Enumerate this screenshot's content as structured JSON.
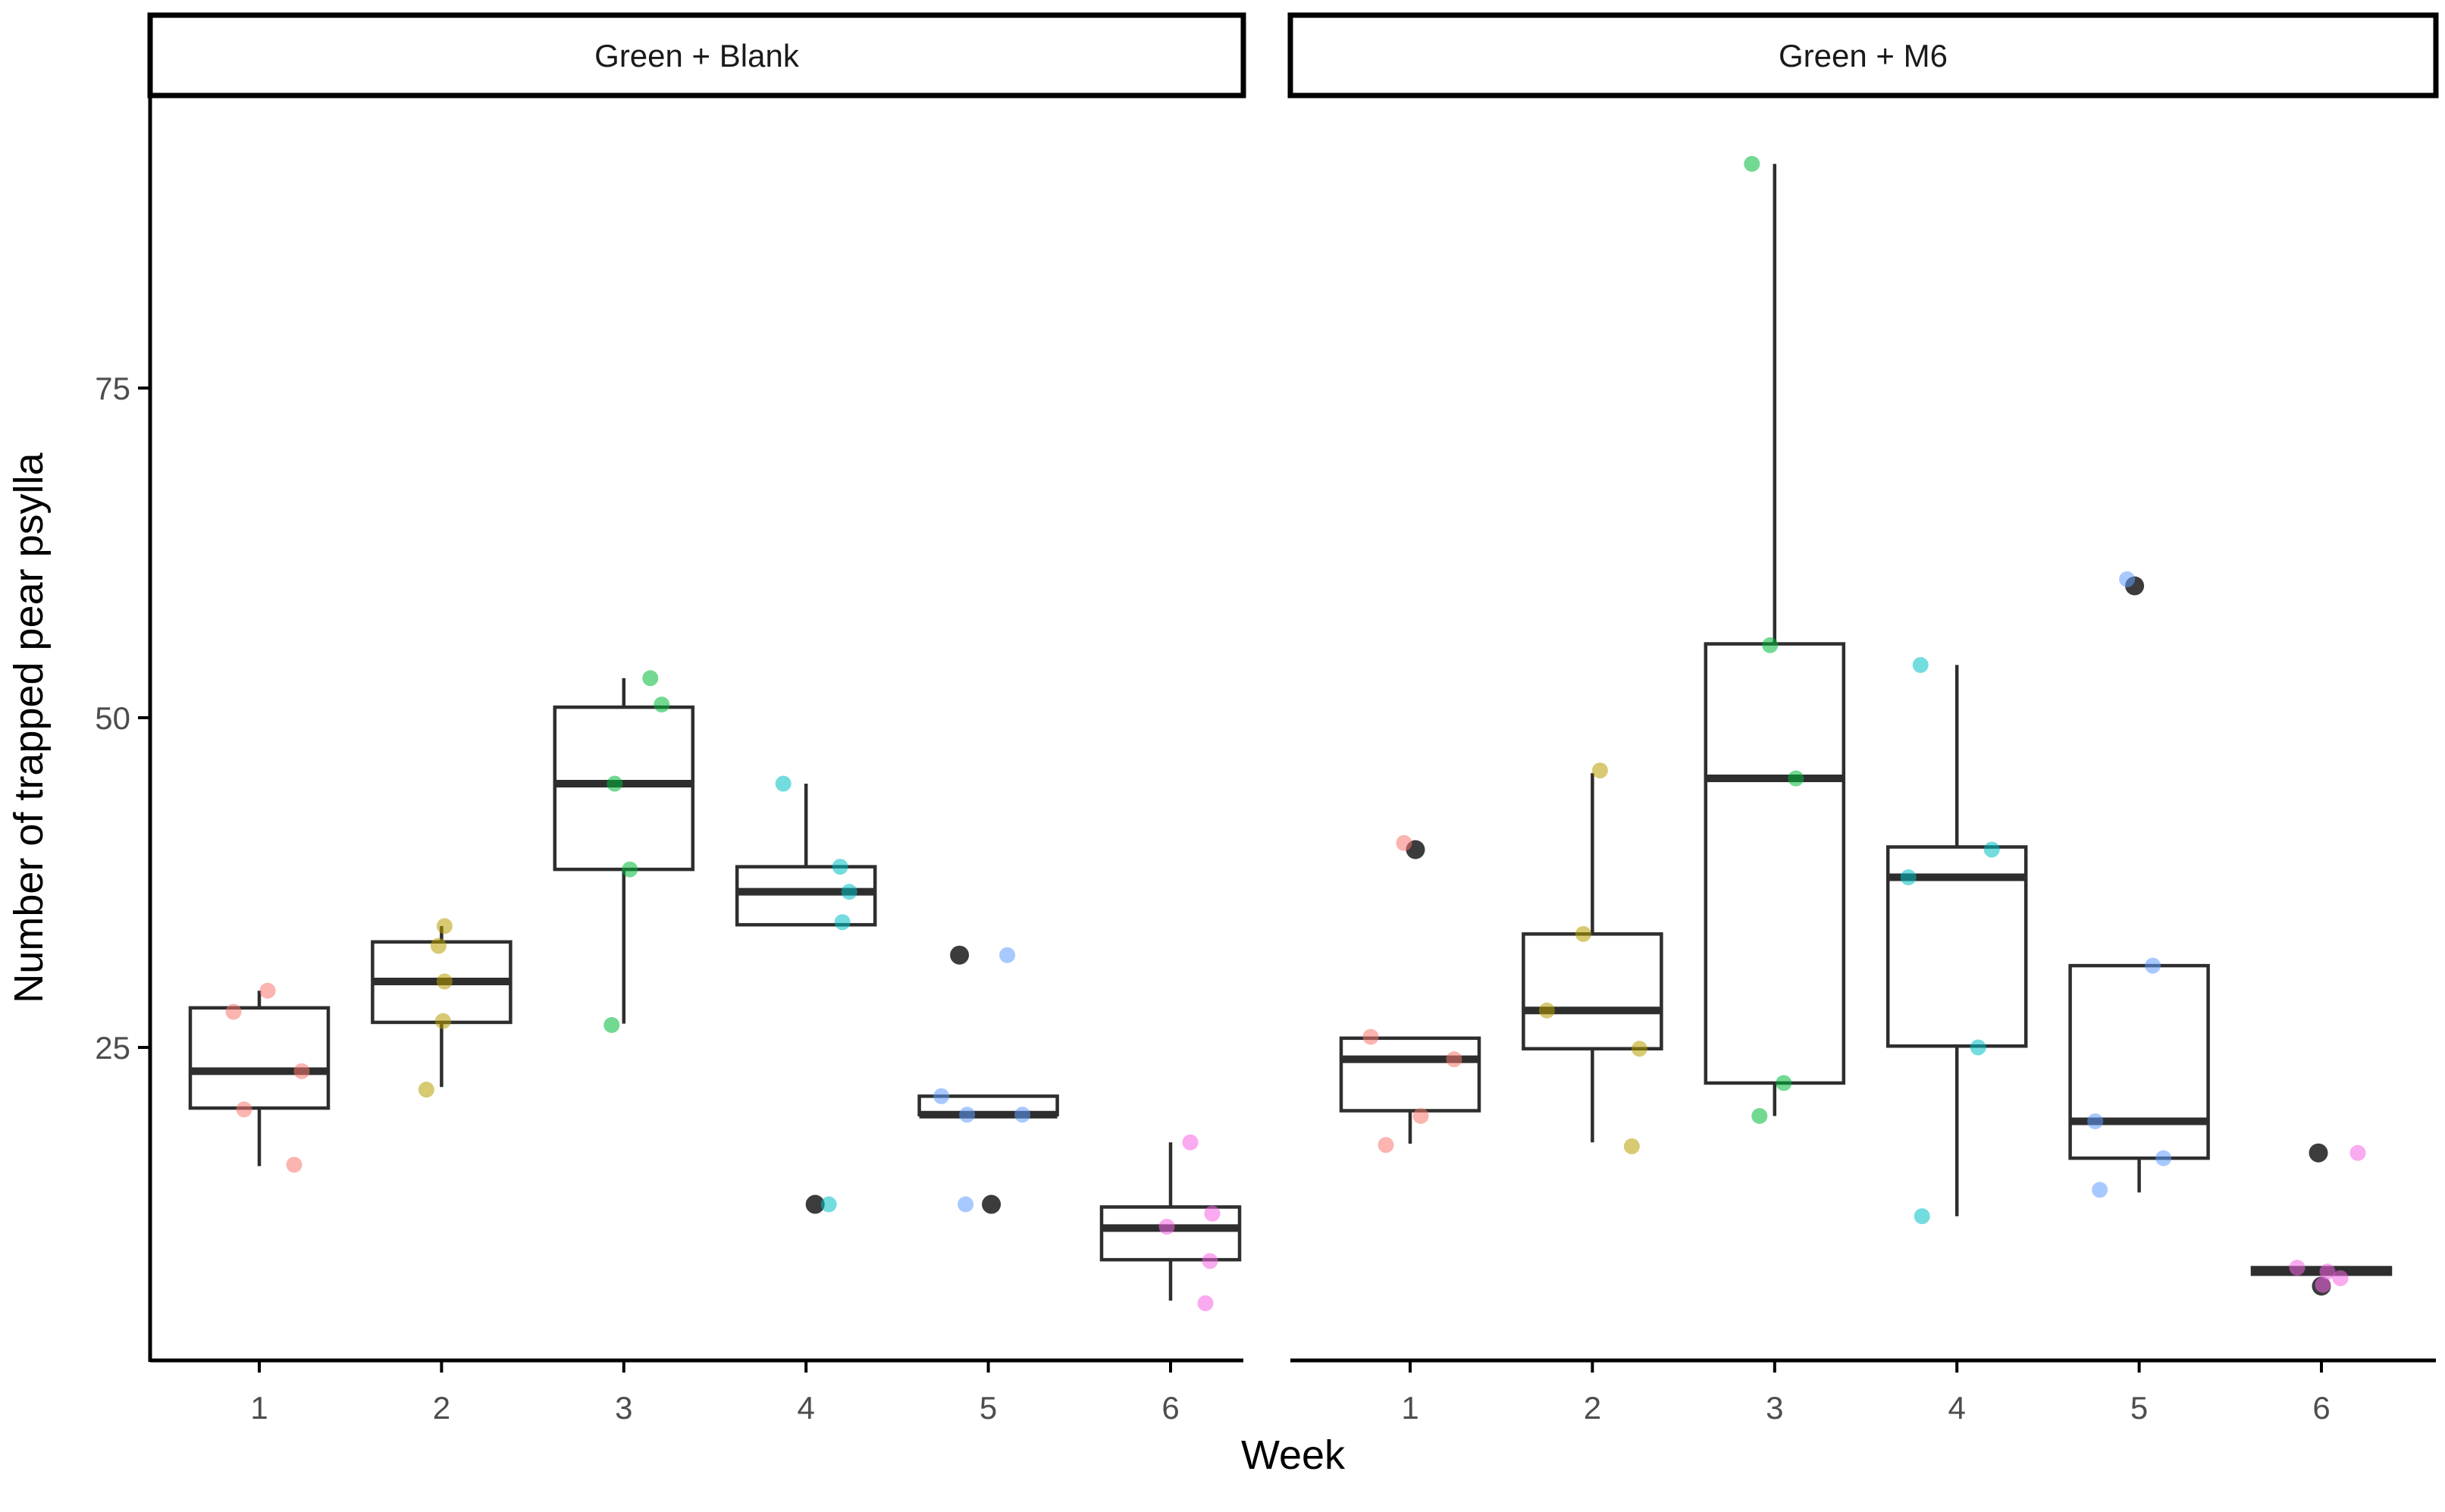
{
  "figure": {
    "x_axis_title": "Week",
    "y_axis_title": "Number of trapped pear psylla",
    "facet_labels": [
      "Green + Blank",
      "Green + M6"
    ]
  },
  "chart_data": {
    "type": "boxplot",
    "title": "",
    "xlabel": "Week",
    "ylabel": "Number of trapped pear psylla",
    "x_categories": [
      "1",
      "2",
      "3",
      "4",
      "5",
      "6"
    ],
    "yticks": [
      25,
      50,
      75
    ],
    "ylim": [
      1,
      97
    ],
    "grid": false,
    "legend_position": "none",
    "week_colors": [
      "#F8766D",
      "#B79F00",
      "#00BA38",
      "#00BFC4",
      "#619CFF",
      "#F564E3"
    ],
    "point_opacity": 0.55,
    "box_color": "#2e2e2e",
    "outlier_color": "#1a1a1a",
    "axis_text_color": "#4d4d4d",
    "facets": [
      {
        "label": "Green + Blank",
        "weeks": [
          {
            "week": "1",
            "q1": 20.4,
            "median": 23.2,
            "q3": 28.0,
            "whisker_low": 16.0,
            "whisker_high": 29.3,
            "outliers": [],
            "points": [
              {
                "v": 29.3,
                "dx": 11
              },
              {
                "v": 27.7,
                "dx": -34
              },
              {
                "v": 23.2,
                "dx": 56
              },
              {
                "v": 20.3,
                "dx": -20
              },
              {
                "v": 16.1,
                "dx": 46
              }
            ]
          },
          {
            "week": "2",
            "q1": 26.9,
            "median": 30.0,
            "q3": 33.0,
            "whisker_low": 22.0,
            "whisker_high": 34.2,
            "outliers": [],
            "points": [
              {
                "v": 34.2,
                "dx": 4
              },
              {
                "v": 32.7,
                "dx": -4
              },
              {
                "v": 30.0,
                "dx": 4
              },
              {
                "v": 27.0,
                "dx": 2
              },
              {
                "v": 21.8,
                "dx": -20
              }
            ]
          },
          {
            "week": "3",
            "q1": 38.5,
            "median": 45.0,
            "q3": 50.8,
            "whisker_low": 26.8,
            "whisker_high": 53.0,
            "outliers": [],
            "points": [
              {
                "v": 53.0,
                "dx": 35
              },
              {
                "v": 51.0,
                "dx": 50
              },
              {
                "v": 45.0,
                "dx": -12
              },
              {
                "v": 38.5,
                "dx": 8
              },
              {
                "v": 26.7,
                "dx": -16
              }
            ]
          },
          {
            "week": "4",
            "q1": 34.3,
            "median": 36.8,
            "q3": 38.7,
            "whisker_low": 34.3,
            "whisker_high": 45.0,
            "outliers": [
              {
                "v": 13.1,
                "dx": 12
              }
            ],
            "points": [
              {
                "v": 45.0,
                "dx": -30
              },
              {
                "v": 38.7,
                "dx": 45
              },
              {
                "v": 36.8,
                "dx": 57
              },
              {
                "v": 34.5,
                "dx": 48
              },
              {
                "v": 13.1,
                "dx": 30
              }
            ]
          },
          {
            "week": "5",
            "q1": 19.9,
            "median": 19.9,
            "q3": 21.3,
            "whisker_low": 19.9,
            "whisker_high": 21.3,
            "outliers": [
              {
                "v": 32.0,
                "dx": -38
              },
              {
                "v": 13.1,
                "dx": 4
              }
            ],
            "points": [
              {
                "v": 32.0,
                "dx": 25
              },
              {
                "v": 21.3,
                "dx": -62
              },
              {
                "v": 19.9,
                "dx": -28
              },
              {
                "v": 19.9,
                "dx": 45
              },
              {
                "v": 13.1,
                "dx": -30
              }
            ]
          },
          {
            "week": "6",
            "q1": 8.9,
            "median": 11.3,
            "q3": 12.9,
            "whisker_low": 5.8,
            "whisker_high": 17.8,
            "outliers": [],
            "points": [
              {
                "v": 17.8,
                "dx": 26
              },
              {
                "v": 12.4,
                "dx": 55
              },
              {
                "v": 11.4,
                "dx": -5
              },
              {
                "v": 8.8,
                "dx": 52
              },
              {
                "v": 5.6,
                "dx": 46
              }
            ]
          }
        ]
      },
      {
        "label": "Green + M6",
        "weeks": [
          {
            "week": "1",
            "q1": 20.2,
            "median": 24.1,
            "q3": 25.7,
            "whisker_low": 17.7,
            "whisker_high": 25.7,
            "outliers": [
              {
                "v": 40.0,
                "dx": 7
              }
            ],
            "points": [
              {
                "v": 40.5,
                "dx": -8
              },
              {
                "v": 25.8,
                "dx": -52
              },
              {
                "v": 24.1,
                "dx": 58
              },
              {
                "v": 19.8,
                "dx": 14
              },
              {
                "v": 17.6,
                "dx": -32
              }
            ]
          },
          {
            "week": "2",
            "q1": 24.9,
            "median": 27.8,
            "q3": 33.6,
            "whisker_low": 17.8,
            "whisker_high": 45.8,
            "outliers": [],
            "points": [
              {
                "v": 46.0,
                "dx": 10
              },
              {
                "v": 33.6,
                "dx": -12
              },
              {
                "v": 27.8,
                "dx": -60
              },
              {
                "v": 24.9,
                "dx": 62
              },
              {
                "v": 17.5,
                "dx": 52
              }
            ]
          },
          {
            "week": "3",
            "q1": 22.3,
            "median": 45.4,
            "q3": 55.6,
            "whisker_low": 19.8,
            "whisker_high": 92.0,
            "outliers": [],
            "points": [
              {
                "v": 92.0,
                "dx": -30
              },
              {
                "v": 55.5,
                "dx": -6
              },
              {
                "v": 45.4,
                "dx": 28
              },
              {
                "v": 22.3,
                "dx": 12
              },
              {
                "v": 19.8,
                "dx": -20
              }
            ]
          },
          {
            "week": "4",
            "q1": 25.1,
            "median": 37.9,
            "q3": 40.2,
            "whisker_low": 12.2,
            "whisker_high": 54.0,
            "outliers": [],
            "points": [
              {
                "v": 54.0,
                "dx": -48
              },
              {
                "v": 40.0,
                "dx": 46
              },
              {
                "v": 37.9,
                "dx": -64
              },
              {
                "v": 25.0,
                "dx": 28
              },
              {
                "v": 12.2,
                "dx": -46
              }
            ]
          },
          {
            "week": "5",
            "q1": 16.6,
            "median": 19.4,
            "q3": 31.2,
            "whisker_low": 14.0,
            "whisker_high": 31.2,
            "outliers": [
              {
                "v": 60.0,
                "dx": -6
              }
            ],
            "points": [
              {
                "v": 60.5,
                "dx": -16
              },
              {
                "v": 31.2,
                "dx": 18
              },
              {
                "v": 19.4,
                "dx": -58
              },
              {
                "v": 16.6,
                "dx": 32
              },
              {
                "v": 14.2,
                "dx": -52
              }
            ]
          },
          {
            "week": "6",
            "q1": 7.8,
            "median": 8.0,
            "q3": 8.3,
            "whisker_low": 7.8,
            "whisker_high": 8.3,
            "outliers": [
              {
                "v": 17.0,
                "dx": -4
              },
              {
                "v": 6.9,
                "dx": 0
              }
            ],
            "points": [
              {
                "v": 17.0,
                "dx": 48
              },
              {
                "v": 8.3,
                "dx": -32
              },
              {
                "v": 8.0,
                "dx": 8
              },
              {
                "v": 7.5,
                "dx": 25
              },
              {
                "v": 7.0,
                "dx": 2
              }
            ]
          }
        ]
      }
    ]
  }
}
